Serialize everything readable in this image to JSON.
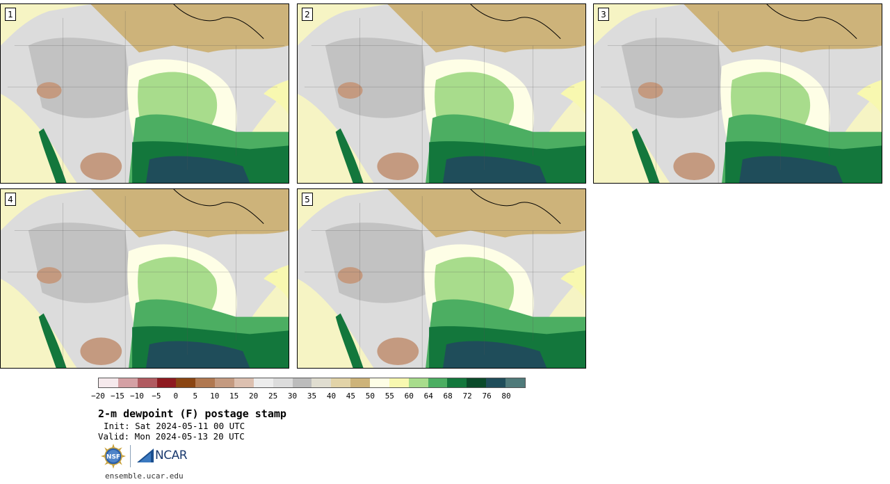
{
  "panels": [
    {
      "label": "1"
    },
    {
      "label": "2"
    },
    {
      "label": "3"
    },
    {
      "label": "4"
    },
    {
      "label": "5"
    }
  ],
  "legend": {
    "colors": [
      "#f5e9ec",
      "#d4a0a4",
      "#b05a60",
      "#8e1a20",
      "#8a4513",
      "#b07850",
      "#c49a80",
      "#dcc0b0",
      "#ececec",
      "#dcdcdc",
      "#bcbcbc",
      "#e0ddd0",
      "#e2d3a8",
      "#cdb37a",
      "#fefee6",
      "#f8f8b0",
      "#a8dc8c",
      "#4cae62",
      "#13773c",
      "#0a4a2a",
      "#1f4d5a",
      "#4f7a7a"
    ],
    "ticks": [
      "−20",
      "−15",
      "−10",
      "−5",
      "0",
      "5",
      "10",
      "15",
      "20",
      "25",
      "30",
      "35",
      "40",
      "45",
      "50",
      "55",
      "60",
      "64",
      "68",
      "72",
      "76",
      "80"
    ]
  },
  "title": "2-m dewpoint (F) postage stamp",
  "init": "Init: Sat 2024-05-11 00 UTC",
  "valid": "Valid: Mon 2024-05-13 20 UTC",
  "logos": {
    "nsf": "NSF",
    "ncar": "NCAR"
  },
  "site": "ensemble.ucar.edu"
}
